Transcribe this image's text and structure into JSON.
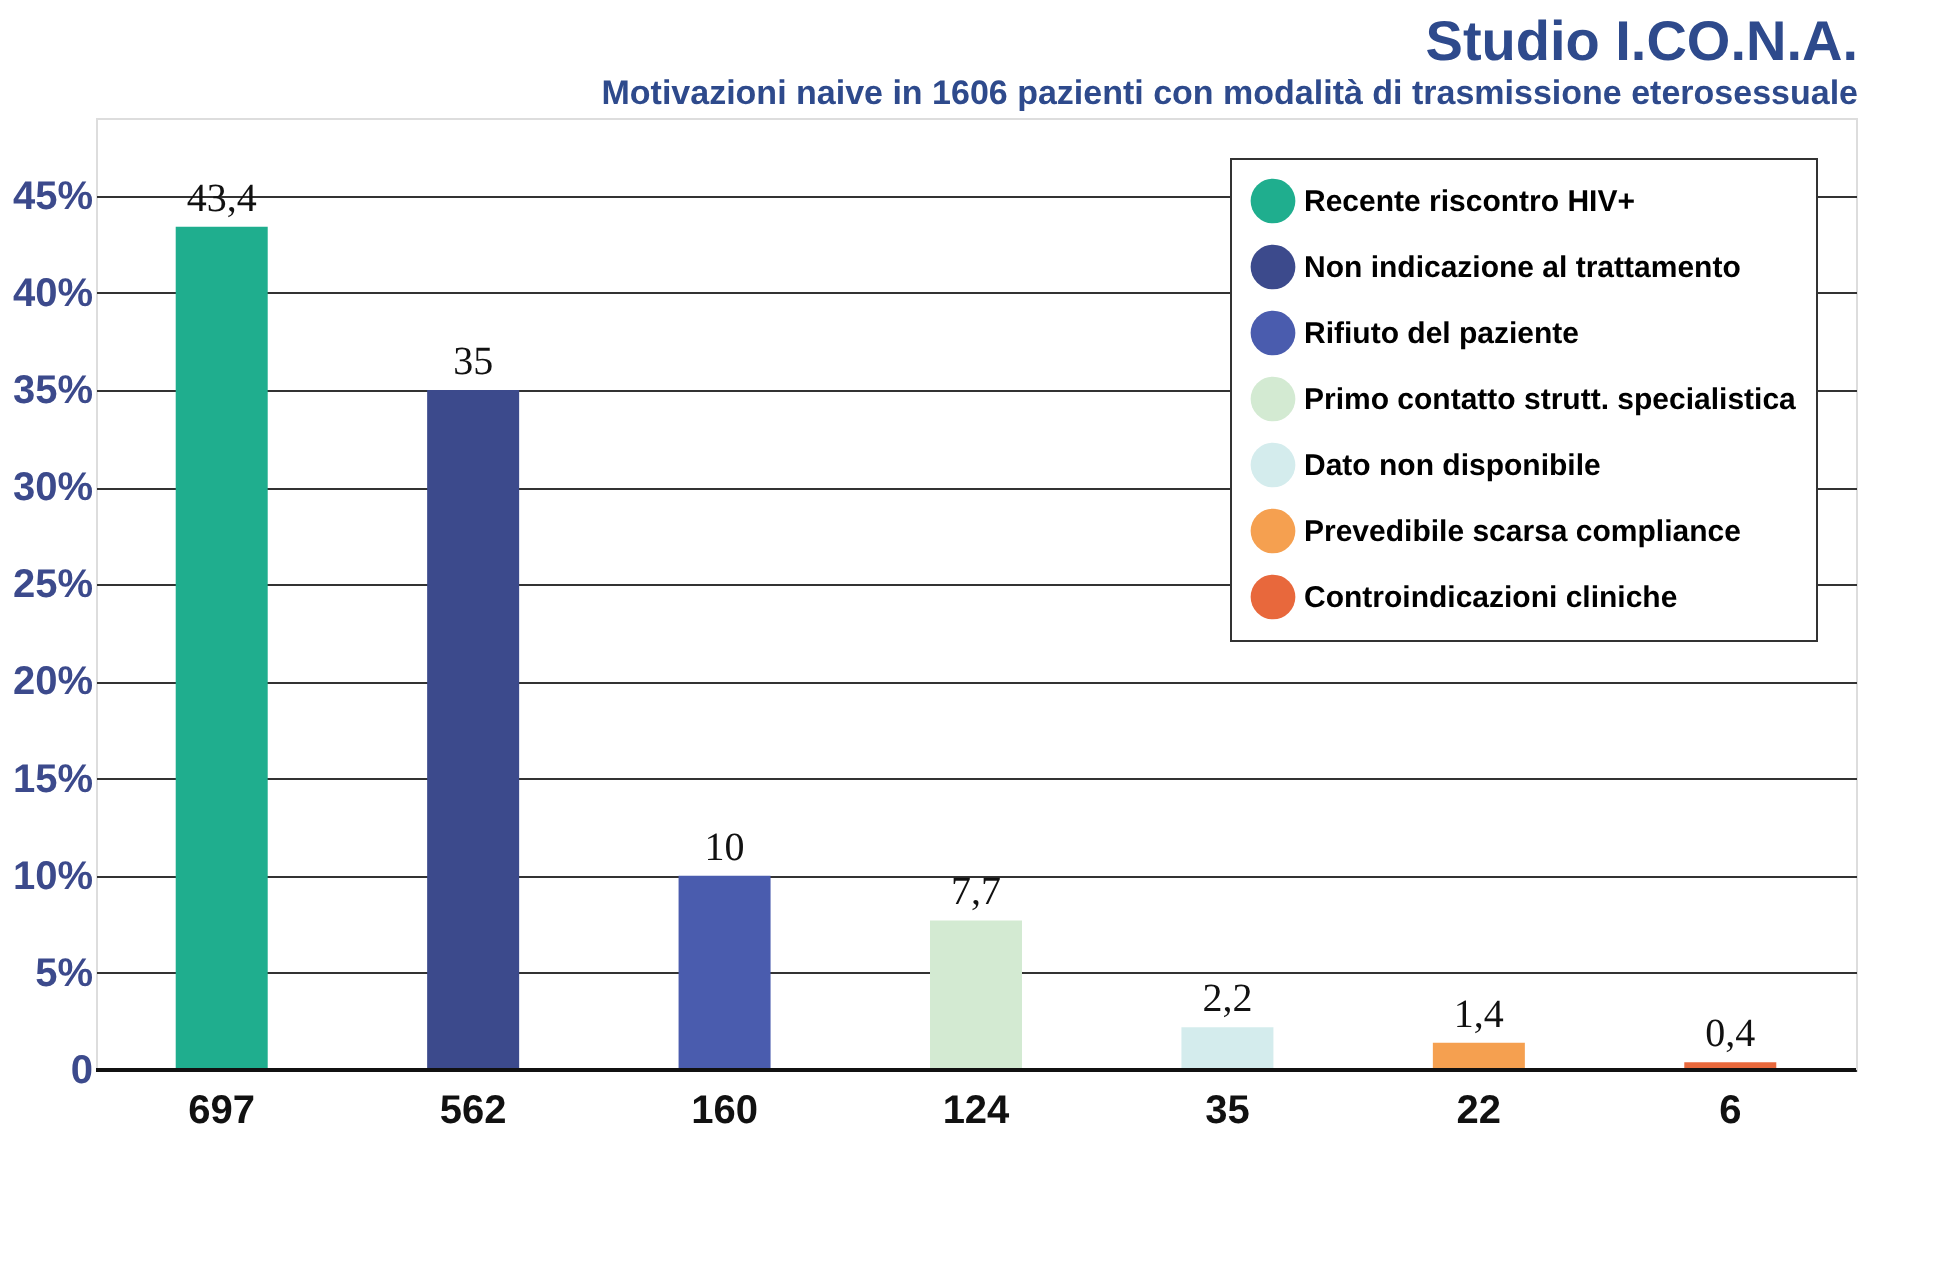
{
  "chart_data": {
    "type": "bar",
    "title": "Studio I.CO.N.A.",
    "subtitle": "Motivazioni naive in 1606 pazienti con modalità di trasmissione eterosessuale",
    "categories": [
      "697",
      "562",
      "160",
      "124",
      "35",
      "22",
      "6"
    ],
    "series": [
      {
        "name": "Recente riscontro HIV+",
        "color": "#1fae8e",
        "values": [
          43.4,
          null,
          null,
          null,
          null,
          null,
          null
        ],
        "value_labels": [
          "43,4",
          null,
          null,
          null,
          null,
          null,
          null
        ]
      },
      {
        "name": "Non indicazione al trattamento",
        "color": "#3c4a8c",
        "values": [
          null,
          35,
          null,
          null,
          null,
          null,
          null
        ],
        "value_labels": [
          null,
          "35",
          null,
          null,
          null,
          null,
          null
        ]
      },
      {
        "name": "Rifiuto del paziente",
        "color": "#4a5cae",
        "values": [
          null,
          null,
          10,
          null,
          null,
          null,
          null
        ],
        "value_labels": [
          null,
          null,
          "10",
          null,
          null,
          null,
          null
        ]
      },
      {
        "name": "Primo contatto strutt. specialistica",
        "color": "#d3ead2",
        "values": [
          null,
          null,
          null,
          7.7,
          null,
          null,
          null
        ],
        "value_labels": [
          null,
          null,
          null,
          "7,7",
          null,
          null,
          null
        ]
      },
      {
        "name": "Dato non disponibile",
        "color": "#d4eced",
        "values": [
          null,
          null,
          null,
          null,
          2.2,
          null,
          null
        ],
        "value_labels": [
          null,
          null,
          null,
          null,
          "2,2",
          null,
          null
        ]
      },
      {
        "name": "Prevedibile scarsa compliance",
        "color": "#f5a050",
        "values": [
          null,
          null,
          null,
          null,
          null,
          1.4,
          null
        ],
        "value_labels": [
          null,
          null,
          null,
          null,
          null,
          "1,4",
          null
        ]
      },
      {
        "name": "Controindicazioni cliniche",
        "color": "#e8683c",
        "values": [
          null,
          null,
          null,
          null,
          null,
          null,
          0.4
        ],
        "value_labels": [
          null,
          null,
          null,
          null,
          null,
          null,
          "0,4"
        ]
      }
    ],
    "ylim": [
      0,
      49
    ],
    "yticks": [
      0,
      {
        "value": 5,
        "label": "5%"
      },
      {
        "value": 10,
        "label": "10%"
      },
      {
        "value": 15,
        "label": "15%"
      },
      {
        "value": 20,
        "label": "20%"
      },
      {
        "value": 25,
        "label": "25%"
      },
      {
        "value": 30,
        "label": "30%"
      },
      {
        "value": 35,
        "label": "35%"
      },
      {
        "value": 40,
        "label": "40%"
      },
      {
        "value": 45,
        "label": "45%"
      }
    ],
    "grid": "y",
    "legend": "top right"
  }
}
